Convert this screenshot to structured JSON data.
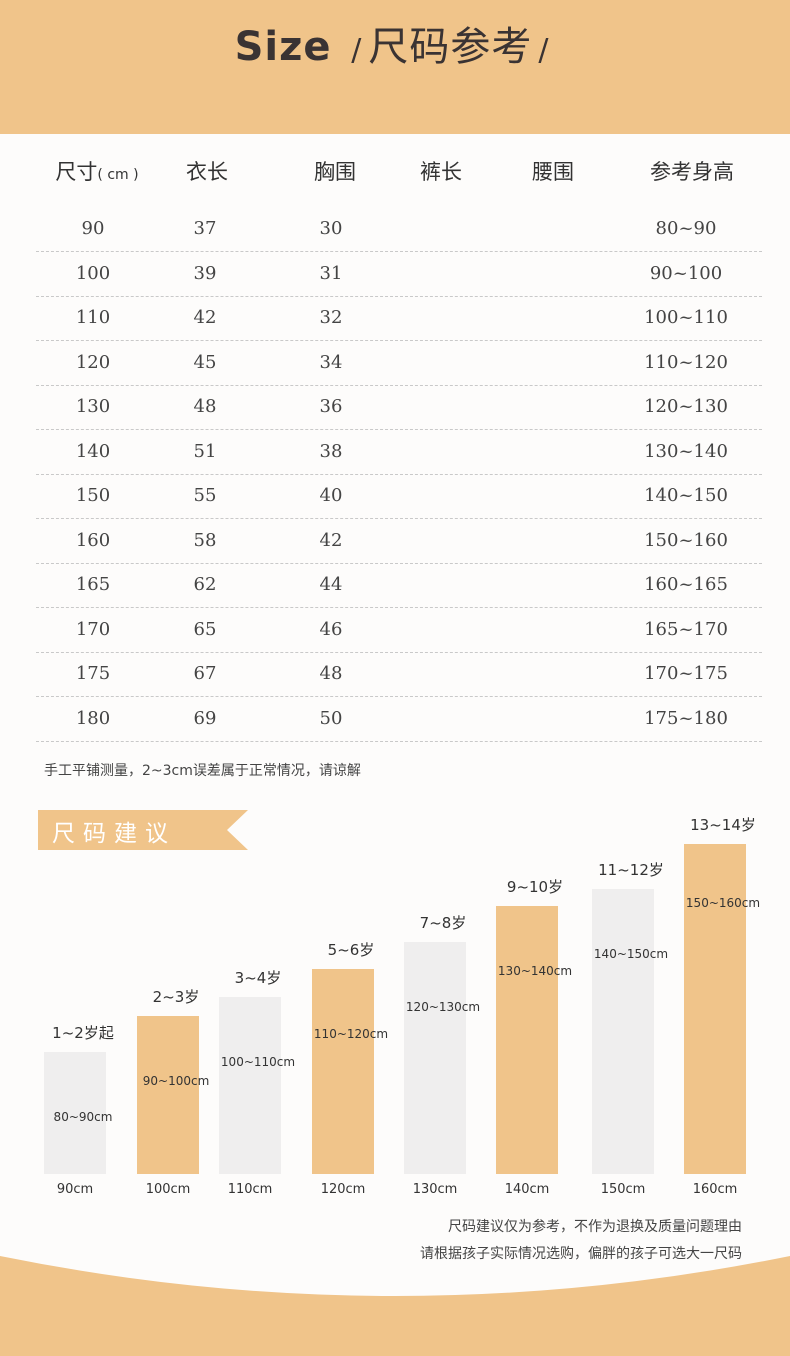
{
  "header": {
    "title_en": "Size",
    "slash1": "/",
    "title_zh": "尺码参考",
    "slash2": "/"
  },
  "table": {
    "columns": [
      "尺寸",
      "衣长",
      "胸围",
      "裤长",
      "腰围",
      "参考身高"
    ],
    "unit": "( cm )",
    "rows": [
      [
        "90",
        "37",
        "30",
        "",
        "",
        "80~90"
      ],
      [
        "100",
        "39",
        "31",
        "",
        "",
        "90~100"
      ],
      [
        "110",
        "42",
        "32",
        "",
        "",
        "100~110"
      ],
      [
        "120",
        "45",
        "34",
        "",
        "",
        "110~120"
      ],
      [
        "130",
        "48",
        "36",
        "",
        "",
        "120~130"
      ],
      [
        "140",
        "51",
        "38",
        "",
        "",
        "130~140"
      ],
      [
        "150",
        "55",
        "40",
        "",
        "",
        "140~150"
      ],
      [
        "160",
        "58",
        "42",
        "",
        "",
        "150~160"
      ],
      [
        "165",
        "62",
        "44",
        "",
        "",
        "160~165"
      ],
      [
        "170",
        "65",
        "46",
        "",
        "",
        "165~170"
      ],
      [
        "175",
        "67",
        "48",
        "",
        "",
        "170~175"
      ],
      [
        "180",
        "69",
        "50",
        "",
        "",
        "175~180"
      ]
    ],
    "note": "手工平铺测量，2~3cm误差属于正常情况，请谅解"
  },
  "suggestion": {
    "title": "尺码建议",
    "accent_color": "#f0c48a",
    "bars": [
      {
        "age": "1~2岁起",
        "range": "80~90cm",
        "size": "90cm",
        "color": "gray"
      },
      {
        "age": "2~3岁",
        "range": "90~100cm",
        "size": "100cm",
        "color": "orange"
      },
      {
        "age": "3~4岁",
        "range": "100~110cm",
        "size": "110cm",
        "color": "gray"
      },
      {
        "age": "5~6岁",
        "range": "110~120cm",
        "size": "120cm",
        "color": "orange"
      },
      {
        "age": "7~8岁",
        "range": "120~130cm",
        "size": "130cm",
        "color": "gray"
      },
      {
        "age": "9~10岁",
        "range": "130~140cm",
        "size": "140cm",
        "color": "orange"
      },
      {
        "age": "11~12岁",
        "range": "140~150cm",
        "size": "150cm",
        "color": "gray"
      },
      {
        "age": "13~14岁",
        "range": "150~160cm",
        "size": "160cm",
        "color": "orange"
      }
    ],
    "disclaimer_1": "尺码建议仅为参考，不作为退换及质量问题理由",
    "disclaimer_2": "请根据孩子实际情况选购，偏胖的孩子可选大一尺码"
  }
}
